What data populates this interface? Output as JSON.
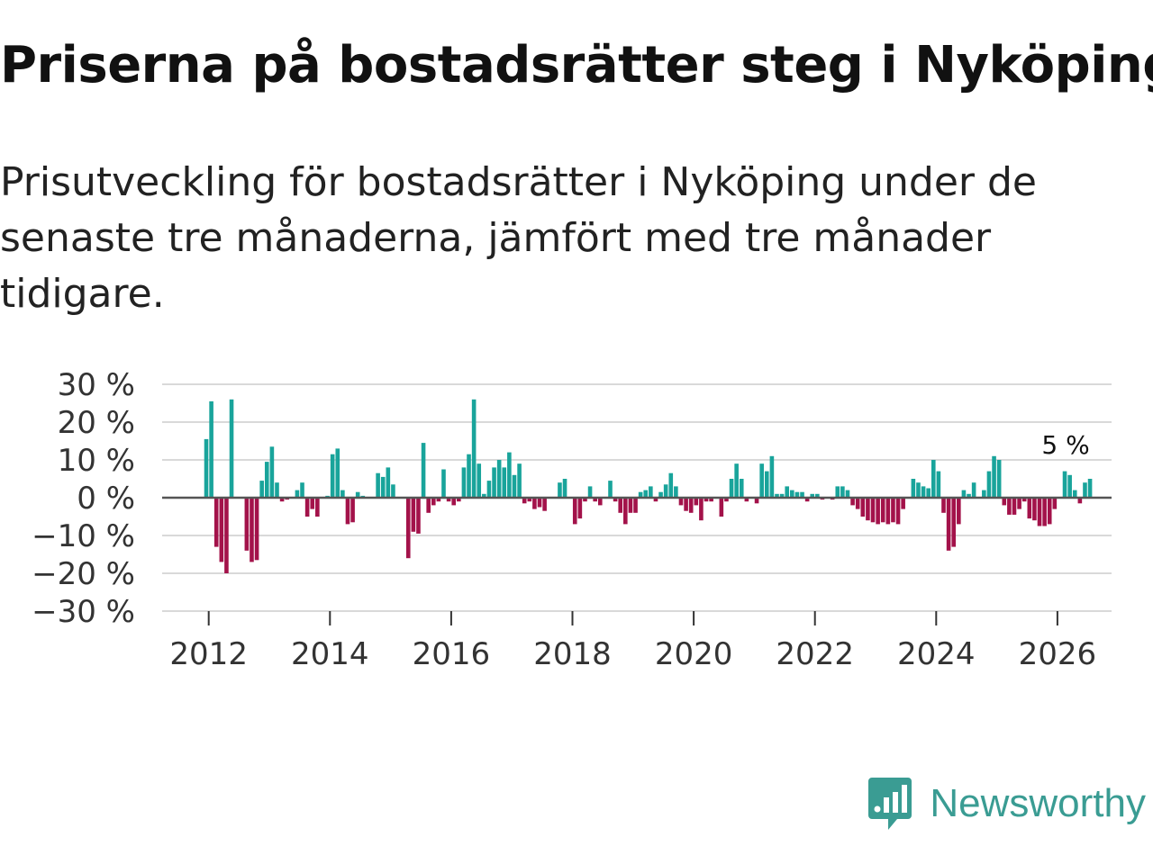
{
  "title": "Priserna på bostadsrätter steg i Nyköping",
  "subtitle": "Prisutveckling för bostadsrätter i Nyköping under de senaste tre månaderna, jämfört med tre månader tidigare.",
  "brand": {
    "name": "Newsworthy",
    "color": "#3a9c93"
  },
  "colors": {
    "positive": "#19a49b",
    "negative": "#a3124a",
    "grid": "#d9d9d9",
    "zero": "#555555"
  },
  "chart_data": {
    "type": "bar",
    "title": "Priserna på bostadsrätter steg i Nyköping",
    "ylabel": "",
    "xlabel": "",
    "ylim": [
      -30,
      30
    ],
    "yticks": [
      30,
      20,
      10,
      0,
      -10,
      -20,
      -30
    ],
    "ytick_labels": [
      "30 %",
      "20 %",
      "10 %",
      "0 %",
      "−10 %",
      "−20 %",
      "−30 %"
    ],
    "xticks": [
      2012,
      2014,
      2016,
      2018,
      2020,
      2022,
      2024,
      2026
    ],
    "x_start": 2011.96,
    "x_step": 0.0833,
    "last_value_label": "5 %",
    "values": [
      15.5,
      25.5,
      -13,
      -17,
      -20,
      26,
      0,
      0,
      -14,
      -17,
      -16.5,
      4.5,
      9.5,
      13.5,
      4,
      -1,
      -0.5,
      0,
      2,
      4,
      -5,
      -3,
      -5,
      0,
      0.5,
      11.5,
      13,
      2,
      -7,
      -6.5,
      1.5,
      0.5,
      0,
      0,
      6.5,
      5.5,
      8,
      3.5,
      0,
      0,
      -16,
      -9,
      -9.5,
      14.5,
      -4,
      -2,
      -1,
      7.5,
      -1,
      -2,
      -1,
      8,
      11.5,
      26,
      9,
      1,
      4.5,
      8,
      10,
      8,
      12,
      6,
      9,
      -1.5,
      -1,
      -3,
      -2.5,
      -3.5,
      0,
      0,
      4,
      5,
      0,
      -7,
      -5.5,
      -1,
      3,
      -1,
      -2,
      0,
      4.5,
      -1,
      -4,
      -7,
      -4,
      -4,
      1.5,
      2,
      3,
      -1,
      1.5,
      3.5,
      6.5,
      3,
      -2,
      -3.5,
      -4,
      -2,
      -6,
      -1,
      -1,
      0,
      -5,
      -1,
      5,
      9,
      5,
      -1,
      0,
      -1.5,
      9,
      7,
      11,
      1,
      1,
      3,
      2,
      1.5,
      1.5,
      -1,
      1,
      1,
      -0.5,
      0,
      -0.5,
      3,
      3,
      2,
      -2,
      -3,
      -5,
      -6,
      -6.5,
      -7,
      -6.5,
      -7,
      -6.5,
      -7,
      -3,
      0,
      5,
      4,
      3,
      2.5,
      10,
      7,
      -4,
      -14,
      -13,
      -7,
      2,
      1,
      4,
      0,
      2,
      7,
      11,
      10,
      -2,
      -4.5,
      -4.5,
      -3,
      -1,
      -5.5,
      -6,
      -7.5,
      -7.5,
      -7,
      -3,
      0,
      7,
      6,
      2,
      -1.5,
      4,
      5
    ]
  }
}
